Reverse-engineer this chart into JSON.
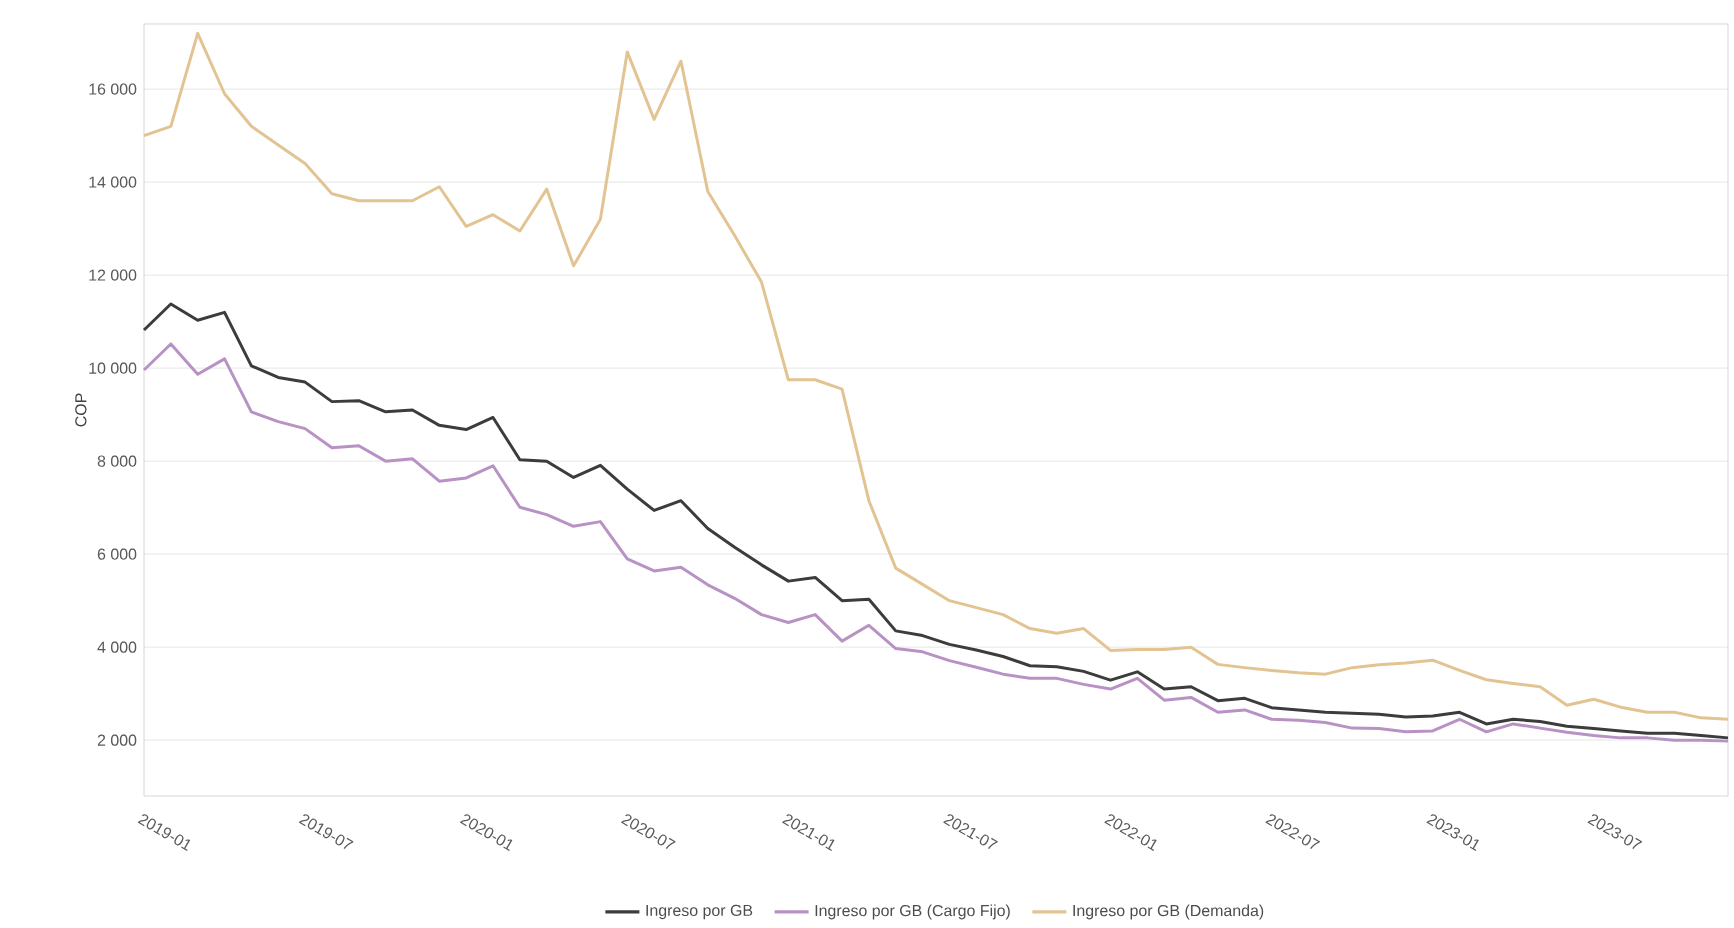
{
  "chart_data": {
    "type": "line",
    "ylabel": "COP",
    "x": [
      "2019-01",
      "2019-02",
      "2019-03",
      "2019-04",
      "2019-05",
      "2019-06",
      "2019-07",
      "2019-08",
      "2019-09",
      "2019-10",
      "2019-11",
      "2019-12",
      "2020-01",
      "2020-02",
      "2020-03",
      "2020-04",
      "2020-05",
      "2020-06",
      "2020-07",
      "2020-08",
      "2020-09",
      "2020-10",
      "2020-11",
      "2020-12",
      "2021-01",
      "2021-02",
      "2021-03",
      "2021-04",
      "2021-05",
      "2021-06",
      "2021-07",
      "2021-08",
      "2021-09",
      "2021-10",
      "2021-11",
      "2021-12",
      "2022-01",
      "2022-02",
      "2022-03",
      "2022-04",
      "2022-05",
      "2022-06",
      "2022-07",
      "2022-08",
      "2022-09",
      "2022-10",
      "2022-11",
      "2022-12",
      "2023-01",
      "2023-02",
      "2023-03",
      "2023-04",
      "2023-05",
      "2023-06",
      "2023-07",
      "2023-08",
      "2023-09",
      "2023-10",
      "2023-11",
      "2023-12"
    ],
    "series": [
      {
        "name": "Ingreso por GB",
        "color": "#3c3c3c",
        "values": [
          10820,
          11380,
          11030,
          11200,
          10050,
          9800,
          9700,
          9280,
          9300,
          9060,
          9100,
          8770,
          8680,
          8940,
          8030,
          8000,
          7650,
          7910,
          7400,
          6940,
          7150,
          6550,
          6150,
          5770,
          5420,
          5500,
          5000,
          5030,
          4350,
          4250,
          4060,
          3940,
          3800,
          3600,
          3580,
          3480,
          3290,
          3470,
          3100,
          3150,
          2850,
          2900,
          2700,
          2650,
          2600,
          2580,
          2560,
          2500,
          2520,
          2600,
          2350,
          2450,
          2400,
          2300,
          2250,
          2200,
          2150,
          2150,
          2100,
          2050
        ]
      },
      {
        "name": "Ingreso por GB (Cargo Fijo)",
        "color": "#b892c4",
        "values": [
          9960,
          10520,
          9870,
          10200,
          9060,
          8850,
          8700,
          8290,
          8330,
          8000,
          8050,
          7570,
          7640,
          7900,
          7010,
          6850,
          6600,
          6700,
          5900,
          5640,
          5720,
          5340,
          5050,
          4700,
          4530,
          4700,
          4130,
          4470,
          3970,
          3900,
          3710,
          3570,
          3420,
          3330,
          3330,
          3200,
          3100,
          3330,
          2860,
          2920,
          2600,
          2650,
          2450,
          2430,
          2380,
          2260,
          2250,
          2180,
          2200,
          2450,
          2180,
          2350,
          2260,
          2170,
          2100,
          2050,
          2050,
          2000,
          2000,
          1980
        ]
      },
      {
        "name": "Ingreso por GB (Demanda)",
        "color": "#e2c493",
        "values": [
          15000,
          15200,
          17200,
          15900,
          15200,
          14800,
          14400,
          13750,
          13600,
          13600,
          13600,
          13900,
          13050,
          13300,
          12950,
          13850,
          12200,
          13200,
          16800,
          15350,
          16600,
          13800,
          12850,
          11850,
          9750,
          9750,
          9550,
          7150,
          5700,
          5350,
          5000,
          4850,
          4700,
          4400,
          4300,
          4400,
          3930,
          3950,
          3950,
          4000,
          3630,
          3560,
          3500,
          3450,
          3420,
          3560,
          3620,
          3660,
          3720,
          3500,
          3300,
          3220,
          3150,
          2750,
          2880,
          2710,
          2600,
          2600,
          2480,
          2450
        ]
      }
    ],
    "xlim": [
      "2019-01",
      "2023-12"
    ],
    "xticks": [
      "2019-01",
      "2019-07",
      "2020-01",
      "2020-07",
      "2021-01",
      "2021-07",
      "2022-01",
      "2022-07",
      "2023-01",
      "2023-07"
    ],
    "ylim": [
      800,
      17400
    ],
    "yticks": [
      {
        "value": 2000,
        "label": "2 000"
      },
      {
        "value": 4000,
        "label": "4 000"
      },
      {
        "value": 6000,
        "label": "6 000"
      },
      {
        "value": 8000,
        "label": "8 000"
      },
      {
        "value": 10000,
        "label": "10 000"
      },
      {
        "value": 12000,
        "label": "12 000"
      },
      {
        "value": 14000,
        "label": "14 000"
      },
      {
        "value": 16000,
        "label": "16 000"
      }
    ],
    "grid": "y",
    "legend": "bottom",
    "marker": "none",
    "line_style": "solid"
  }
}
